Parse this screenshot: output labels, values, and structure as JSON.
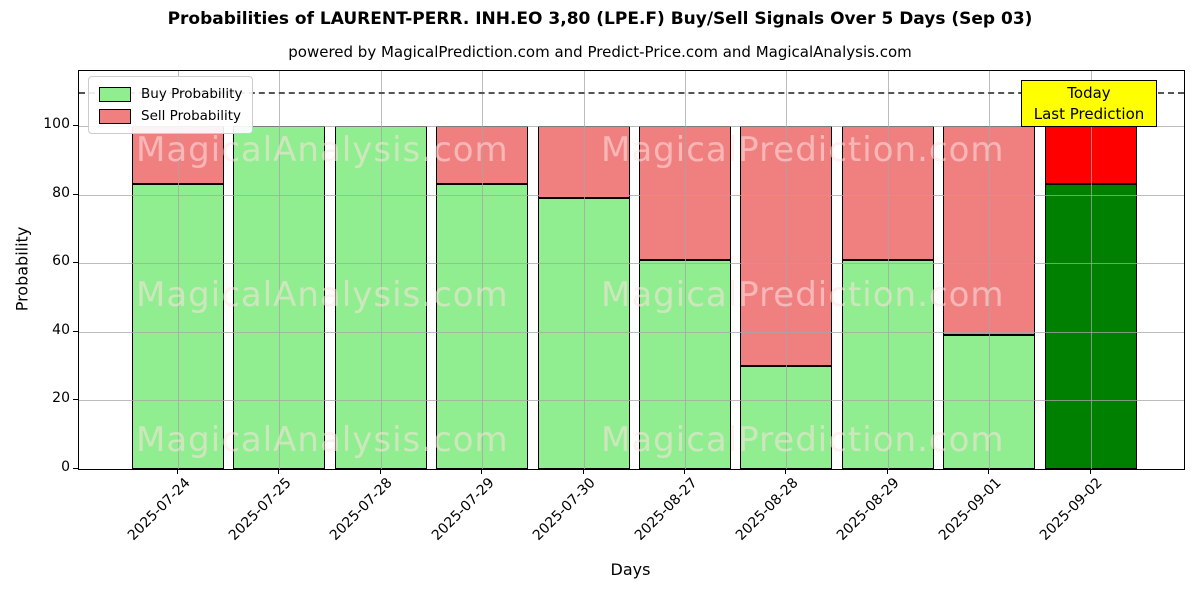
{
  "header": {
    "title": "Probabilities of LAURENT-PERR. INH.EO 3,80 (LPE.F) Buy/Sell Signals Over 5 Days (Sep 03)",
    "subtitle": "powered by MagicalPrediction.com and Predict-Price.com and MagicalAnalysis.com"
  },
  "chart_data": {
    "type": "bar",
    "stacked": true,
    "title": "Probabilities of LAURENT-PERR. INH.EO 3,80 (LPE.F) Buy/Sell Signals Over 5 Days (Sep 03)",
    "subtitle": "powered by MagicalPrediction.com and Predict-Price.com and MagicalAnalysis.com",
    "xlabel": "Days",
    "ylabel": "Probability",
    "categories": [
      "2025-07-24",
      "2025-07-25",
      "2025-07-28",
      "2025-07-29",
      "2025-07-30",
      "2025-08-27",
      "2025-08-28",
      "2025-08-29",
      "2025-09-01",
      "2025-09-02"
    ],
    "series": [
      {
        "name": "Buy Probability",
        "values": [
          83,
          100,
          100,
          83,
          79,
          61,
          30,
          61,
          39,
          83
        ],
        "color": "#90ee90",
        "color_today": "#008000"
      },
      {
        "name": "Sell Probability",
        "values": [
          17,
          0,
          0,
          17,
          21,
          39,
          70,
          39,
          61,
          17
        ],
        "color": "#f08080",
        "color_today": "#ff0000"
      }
    ],
    "yticks": [
      0,
      20,
      40,
      60,
      80,
      100
    ],
    "ylim": [
      0,
      116
    ],
    "dashed_line_y": 110,
    "grid": true,
    "legend_position": "upper-left",
    "annotation": {
      "lines": [
        "Today",
        "Last Prediction"
      ],
      "bg_color": "#ffff00"
    },
    "watermarks": [
      "MagicalAnalysis.com",
      "MagicalPrediction.com"
    ]
  }
}
